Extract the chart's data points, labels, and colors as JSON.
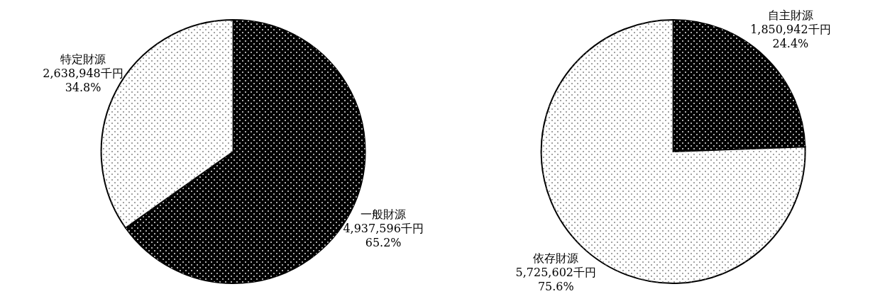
{
  "chart_data": [
    {
      "type": "pie",
      "categories": [
        "一般財源",
        "特定財源"
      ],
      "values": [
        4937596,
        2638948
      ],
      "colors": [
        "#000000",
        "#ffffff"
      ],
      "value_labels": [
        "4,937,596千円\n65.2%",
        "2,638,948千円\n34.8%"
      ]
    },
    {
      "type": "pie",
      "categories": [
        "自主財源",
        "依存財源"
      ],
      "values": [
        1850942,
        5725602
      ],
      "colors": [
        "#000000",
        "#ffffff"
      ],
      "value_labels": [
        "1,850,942千円\n24.4%",
        "5,725,602千円\n75.6%"
      ]
    }
  ]
}
